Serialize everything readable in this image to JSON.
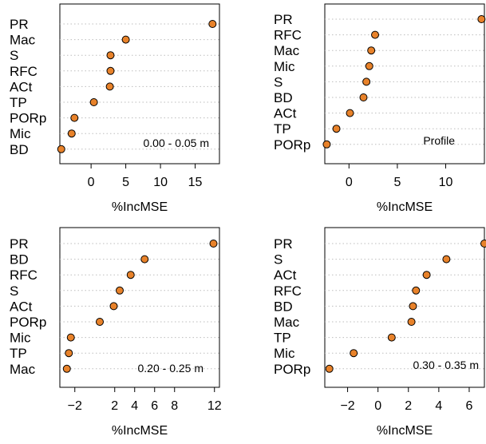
{
  "chart_data": [
    {
      "type": "scatter",
      "annotation": "0.00 - 0.05 m",
      "xlabel": "%IncMSE",
      "xlim": [
        -4.5,
        18.5
      ],
      "xticks": [
        0,
        5,
        10,
        15
      ],
      "categories": [
        "PR",
        "Mac",
        "S",
        "RFC",
        "ACt",
        "TP",
        "PORp",
        "Mic",
        "BD"
      ],
      "values": [
        17.5,
        5.0,
        2.8,
        2.8,
        2.7,
        0.4,
        -2.4,
        -2.8,
        -4.3
      ]
    },
    {
      "type": "scatter",
      "annotation": "Profile",
      "xlabel": "%IncMSE",
      "xlim": [
        -2.5,
        14
      ],
      "xticks": [
        0,
        5,
        10
      ],
      "categories": [
        "PR",
        "RFC",
        "Mac",
        "Mic",
        "S",
        "BD",
        "ACt",
        "TP",
        "PORp"
      ],
      "values": [
        13.7,
        2.7,
        2.3,
        2.1,
        1.8,
        1.5,
        0.1,
        -1.3,
        -2.3
      ]
    },
    {
      "type": "scatter",
      "annotation": "0.20 - 0.25 m",
      "xlabel": "%IncMSE",
      "xlim": [
        -3.5,
        12.5
      ],
      "xticks": [
        -2,
        2,
        4,
        6,
        8,
        12
      ],
      "categories": [
        "PR",
        "BD",
        "RFC",
        "S",
        "ACt",
        "PORp",
        "Mic",
        "TP",
        "Mac"
      ],
      "values": [
        11.9,
        5.0,
        3.6,
        2.5,
        1.9,
        0.5,
        -2.4,
        -2.6,
        -2.8
      ]
    },
    {
      "type": "scatter",
      "annotation": "0.30 - 0.35 m",
      "xlabel": "%IncMSE",
      "xlim": [
        -3.5,
        7
      ],
      "xticks": [
        -2,
        0,
        2,
        4,
        6
      ],
      "categories": [
        "PR",
        "S",
        "ACt",
        "RFC",
        "BD",
        "Mac",
        "TP",
        "Mic",
        "PORp"
      ],
      "values": [
        7.0,
        4.5,
        3.2,
        2.5,
        2.3,
        2.2,
        0.9,
        -1.6,
        -3.2
      ]
    }
  ]
}
